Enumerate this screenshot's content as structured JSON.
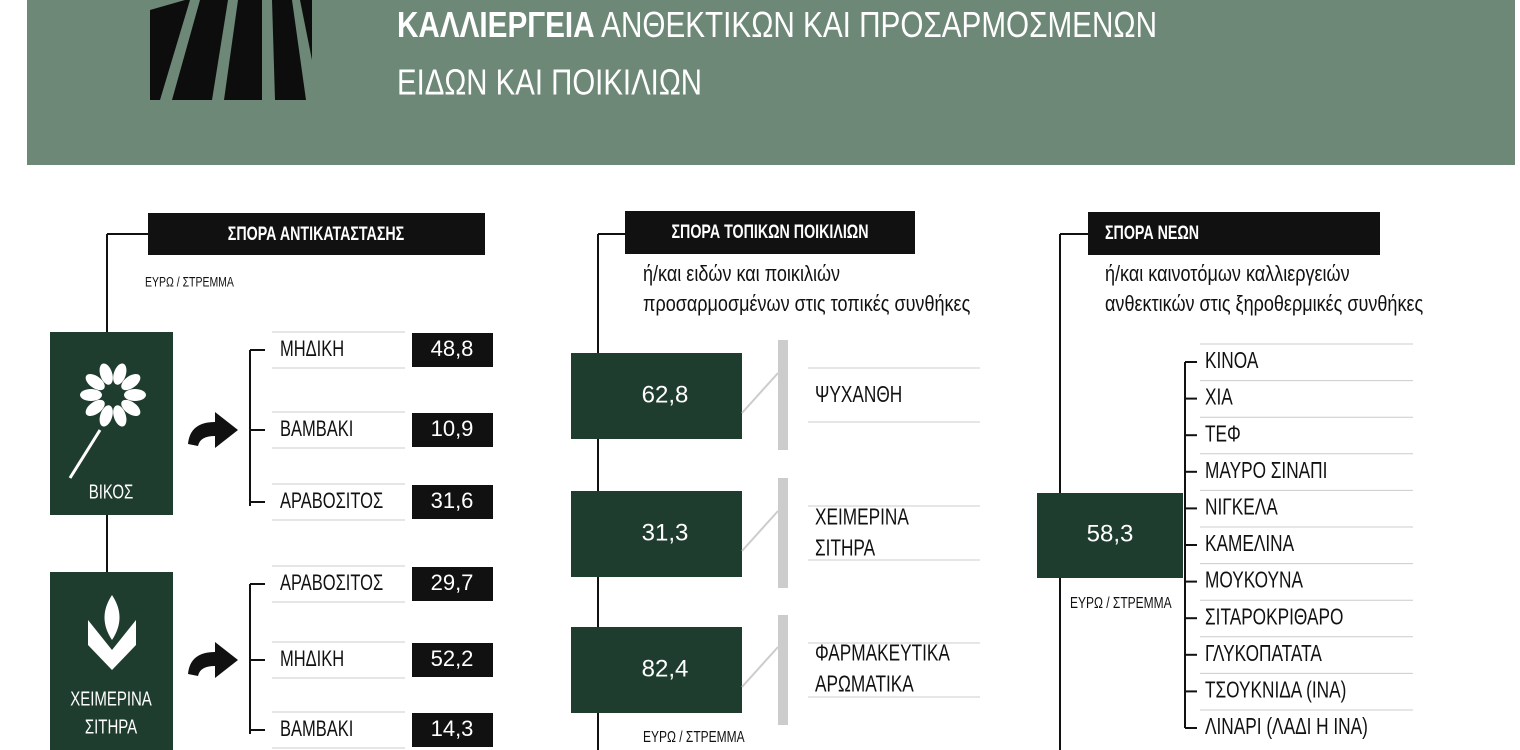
{
  "header": {
    "title_bold": "ΚΑΛΛΙΕΡΓΕΙΑ",
    "title_rest": "ΑΝΘΕΚΤΙΚΩΝ ΚΑΙ ΠΡΟΣΑΡΜΟΣΜΕΝΩΝ",
    "title_line2": "ΕΙΔΩΝ ΚΑΙ ΠΟΙΚΙΛΙΩΝ"
  },
  "replacement": {
    "label": "ΣΠΟΡΑ ΑΝΤΙΚΑΤΑΣΤΑΣΗΣ",
    "unit": "ΕΥΡΩ / ΣΤΡΕΜΜΑ",
    "groups": [
      {
        "crop": [
          "ΒΙΚΟΣ"
        ],
        "items": [
          {
            "name": "ΜΗΔΙΚΗ",
            "value": "48,8"
          },
          {
            "name": "ΒΑΜΒΑΚΙ",
            "value": "10,9"
          },
          {
            "name": "ΑΡΑΒΟΣΙΤΟΣ",
            "value": "31,6"
          }
        ]
      },
      {
        "crop": [
          "ΧΕΙΜΕΡΙΝΑ",
          "ΣΙΤΗΡΑ"
        ],
        "items": [
          {
            "name": "ΑΡΑΒΟΣΙΤΟΣ",
            "value": "29,7"
          },
          {
            "name": "ΜΗΔΙΚΗ",
            "value": "52,2"
          },
          {
            "name": "ΒΑΜΒΑΚΙ",
            "value": "14,3"
          }
        ]
      }
    ]
  },
  "local": {
    "label": "ΣΠΟΡΑ ΤΟΠΙΚΩΝ ΠΟΙΚΙΛΙΩΝ",
    "subtitle": [
      "ή/και ειδών και ποικιλιών",
      "προσαρμοσμένων στις τοπικές συνθήκες"
    ],
    "unit": "ΕΥΡΩ / ΣΤΡΕΜΜΑ",
    "items": [
      {
        "value": "62,8",
        "name": [
          "ΨΥΧΑΝΘΗ"
        ]
      },
      {
        "value": "31,3",
        "name": [
          "ΧΕΙΜΕΡΙΝΑ",
          "ΣΙΤΗΡΑ"
        ]
      },
      {
        "value": "82,4",
        "name": [
          "ΦΑΡΜΑΚΕΥΤΙΚΑ",
          "ΑΡΩΜΑΤΙΚΑ"
        ]
      }
    ]
  },
  "new": {
    "label": "ΣΠΟΡΑ ΝΕΩΝ",
    "subtitle": [
      "ή/και καινοτόμων καλλιεργειών",
      "ανθεκτικών στις ξηροθερμικές συνθήκες"
    ],
    "value": "58,3",
    "unit": "ΕΥΡΩ / ΣΤΡΕΜΜΑ",
    "crops": [
      "ΚΙΝΟΑ",
      "ΧΙΑ",
      "ΤΕΦ",
      "ΜΑΥΡΟ ΣΙΝΑΠΙ",
      "ΝΙΓΚΕΛΑ",
      "ΚΑΜΕΛΙΝΑ",
      "ΜΟΥΚΟΥΝΑ",
      "ΣΙΤΑΡΟΚΡΙΘΑΡΟ",
      "ΓΛΥΚΟΠΑΤΑΤΑ",
      "ΤΣΟΥΚΝΙΔΑ (ΙΝΑ)",
      "ΛΙΝΑΡΙ (ΛΑΔΙ Η ΙΝΑ)"
    ]
  }
}
